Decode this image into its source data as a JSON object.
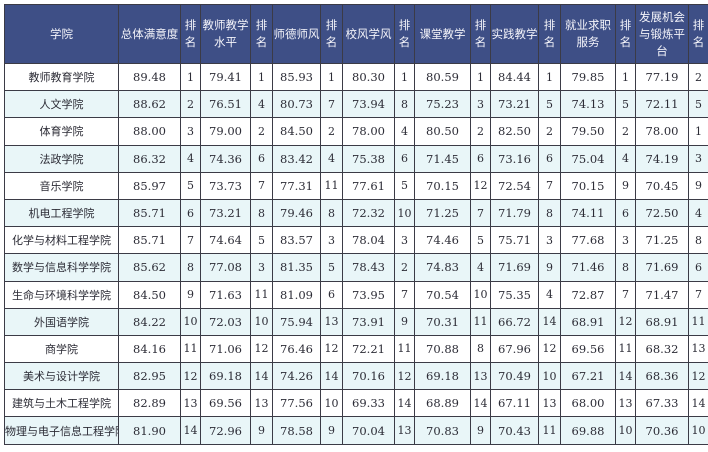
{
  "table": {
    "headers": [
      "学院",
      "总体满意度",
      "排名",
      "教师教学水平",
      "排名",
      "师德师风",
      "排名",
      "校风学风",
      "排名",
      "课堂教学",
      "排名",
      "实践教学",
      "排名",
      "就业求职服务",
      "排名",
      "发展机会与锻炼平台",
      "排名"
    ],
    "rows": [
      [
        "教师教育学院",
        "89.48",
        "1",
        "79.41",
        "1",
        "85.93",
        "1",
        "80.30",
        "1",
        "80.59",
        "1",
        "84.44",
        "1",
        "79.85",
        "1",
        "77.19",
        "2"
      ],
      [
        "人文学院",
        "88.62",
        "2",
        "76.51",
        "4",
        "80.73",
        "7",
        "73.94",
        "8",
        "75.23",
        "3",
        "73.21",
        "5",
        "74.13",
        "5",
        "72.11",
        "5"
      ],
      [
        "体育学院",
        "88.00",
        "3",
        "79.00",
        "2",
        "84.50",
        "2",
        "78.00",
        "4",
        "80.50",
        "2",
        "82.50",
        "2",
        "79.50",
        "2",
        "78.00",
        "1"
      ],
      [
        "法政学院",
        "86.32",
        "4",
        "74.36",
        "6",
        "83.42",
        "4",
        "75.38",
        "6",
        "71.45",
        "6",
        "73.16",
        "6",
        "75.04",
        "4",
        "74.19",
        "3"
      ],
      [
        "音乐学院",
        "85.97",
        "5",
        "73.73",
        "7",
        "77.31",
        "11",
        "77.61",
        "5",
        "70.15",
        "12",
        "72.54",
        "7",
        "70.15",
        "9",
        "70.45",
        "9"
      ],
      [
        "机电工程学院",
        "85.71",
        "6",
        "73.21",
        "8",
        "79.46",
        "8",
        "72.32",
        "10",
        "71.25",
        "7",
        "71.79",
        "8",
        "74.11",
        "6",
        "72.50",
        "4"
      ],
      [
        "化学与材料工程学院",
        "85.71",
        "7",
        "74.64",
        "5",
        "83.57",
        "3",
        "78.04",
        "3",
        "74.46",
        "5",
        "75.71",
        "3",
        "77.68",
        "3",
        "71.25",
        "8"
      ],
      [
        "数学与信息科学学院",
        "85.62",
        "8",
        "77.08",
        "3",
        "81.35",
        "5",
        "78.43",
        "2",
        "74.83",
        "4",
        "71.69",
        "9",
        "71.46",
        "8",
        "71.69",
        "6"
      ],
      [
        "生命与环境科学学院",
        "84.50",
        "9",
        "71.63",
        "11",
        "81.09",
        "6",
        "73.95",
        "7",
        "70.54",
        "10",
        "75.35",
        "4",
        "72.87",
        "7",
        "71.47",
        "7"
      ],
      [
        "外国语学院",
        "84.22",
        "10",
        "72.03",
        "10",
        "75.94",
        "13",
        "73.91",
        "9",
        "70.31",
        "11",
        "66.72",
        "14",
        "68.91",
        "12",
        "68.91",
        "11"
      ],
      [
        "商学院",
        "84.16",
        "11",
        "71.06",
        "12",
        "76.46",
        "12",
        "72.21",
        "11",
        "70.88",
        "8",
        "67.96",
        "12",
        "69.56",
        "11",
        "68.32",
        "13"
      ],
      [
        "美术与设计学院",
        "82.95",
        "12",
        "69.18",
        "14",
        "74.26",
        "14",
        "70.16",
        "12",
        "69.18",
        "13",
        "70.49",
        "10",
        "67.21",
        "14",
        "68.36",
        "12"
      ],
      [
        "建筑与土木工程学院",
        "82.89",
        "13",
        "69.56",
        "13",
        "77.56",
        "10",
        "69.33",
        "14",
        "68.89",
        "14",
        "67.11",
        "13",
        "68.00",
        "13",
        "67.33",
        "14"
      ],
      [
        "物理与电子信息工程学院",
        "81.90",
        "14",
        "72.96",
        "9",
        "78.58",
        "9",
        "70.04",
        "13",
        "70.83",
        "9",
        "70.43",
        "11",
        "69.88",
        "10",
        "70.36",
        "10"
      ]
    ]
  },
  "colors": {
    "header_bg": "#3e4f86",
    "alt_row": "#e9f6f8"
  }
}
